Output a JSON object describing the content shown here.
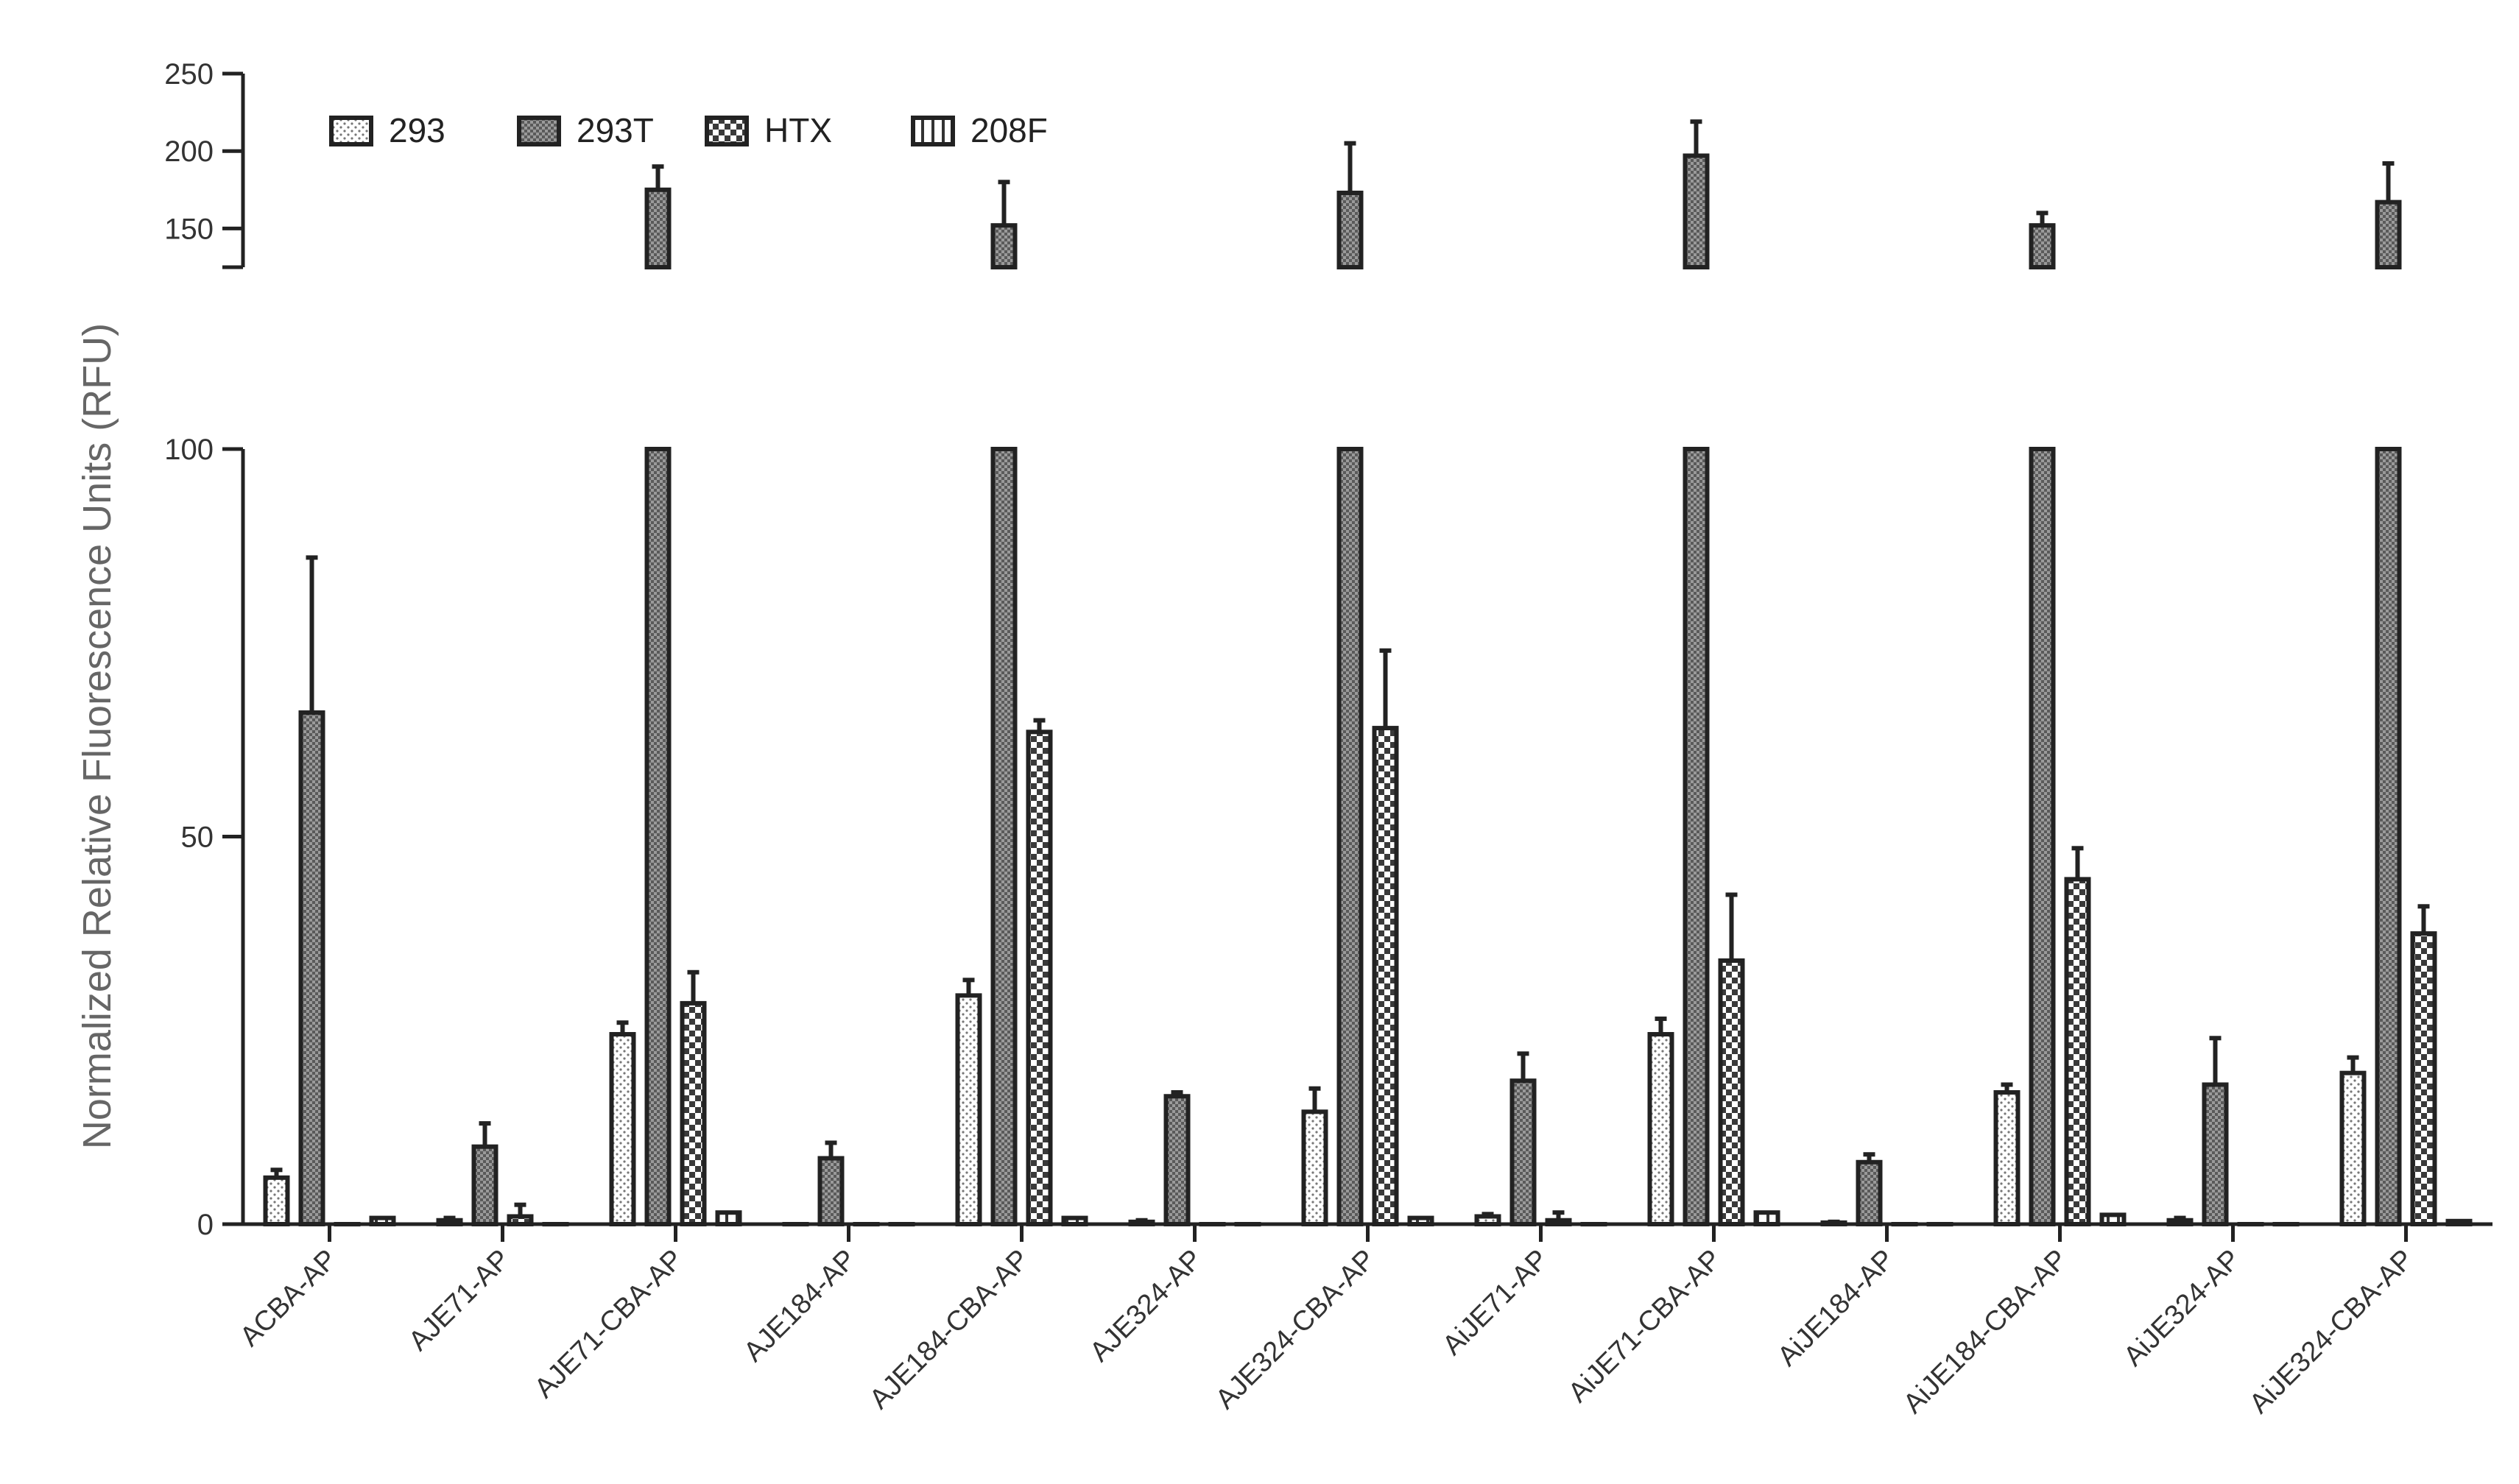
{
  "chart_data": {
    "type": "bar",
    "title": "",
    "xlabel": "",
    "ylabel": "Normalized Relative Fluorescence Units (RFU)",
    "axis_break": {
      "lower": [
        0,
        100
      ],
      "upper": [
        125,
        250
      ]
    },
    "lower_ticks": [
      0,
      50,
      100
    ],
    "upper_ticks": [
      150,
      200,
      250
    ],
    "legend_position": "top-left",
    "categories": [
      "ACBA-AP",
      "AJE71-AP",
      "AJE71-CBA-AP",
      "AJE184-AP",
      "AJE184-CBA-AP",
      "AJE324-AP",
      "AJE324-CBA-AP",
      "AiJE71-AP",
      "AiJE71-CBA-AP",
      "AiJE184-AP",
      "AiJE184-CBA-AP",
      "AiJE324-AP",
      "AiJE324-CBA-AP"
    ],
    "series": [
      {
        "name": "293",
        "pattern": "dots",
        "values": [
          6,
          0.5,
          24.5,
          0,
          29.5,
          0.3,
          14.5,
          1,
          24.5,
          0.2,
          17,
          0.5,
          19.5
        ],
        "errors": [
          1,
          0.3,
          1.5,
          0,
          2,
          0.2,
          3,
          0.3,
          2,
          0.1,
          1,
          0.3,
          2
        ]
      },
      {
        "name": "293T",
        "pattern": "fine",
        "values": [
          66,
          10,
          175,
          8.5,
          152,
          16.5,
          173,
          18.5,
          197,
          8,
          152,
          18,
          167
        ],
        "errors": [
          20,
          3,
          15,
          2,
          28,
          0.5,
          32,
          3.5,
          22,
          1,
          8,
          6,
          25
        ]
      },
      {
        "name": "HTX",
        "pattern": "checker",
        "values": [
          0,
          1,
          28.5,
          0,
          63.5,
          0,
          64,
          0.5,
          34,
          0,
          44.5,
          0,
          37.5
        ],
        "errors": [
          0,
          1.5,
          4,
          0,
          1.5,
          0,
          10,
          1,
          8.5,
          0,
          4,
          0,
          3.5
        ]
      },
      {
        "name": "208F",
        "pattern": "stripes",
        "values": [
          0.8,
          0,
          1.5,
          0,
          0.8,
          0,
          0.8,
          0,
          1.5,
          0,
          1.2,
          0,
          0.4
        ],
        "errors": [
          0,
          0,
          0,
          0,
          0,
          0,
          0,
          0,
          0,
          0,
          0,
          0,
          0
        ]
      }
    ]
  }
}
